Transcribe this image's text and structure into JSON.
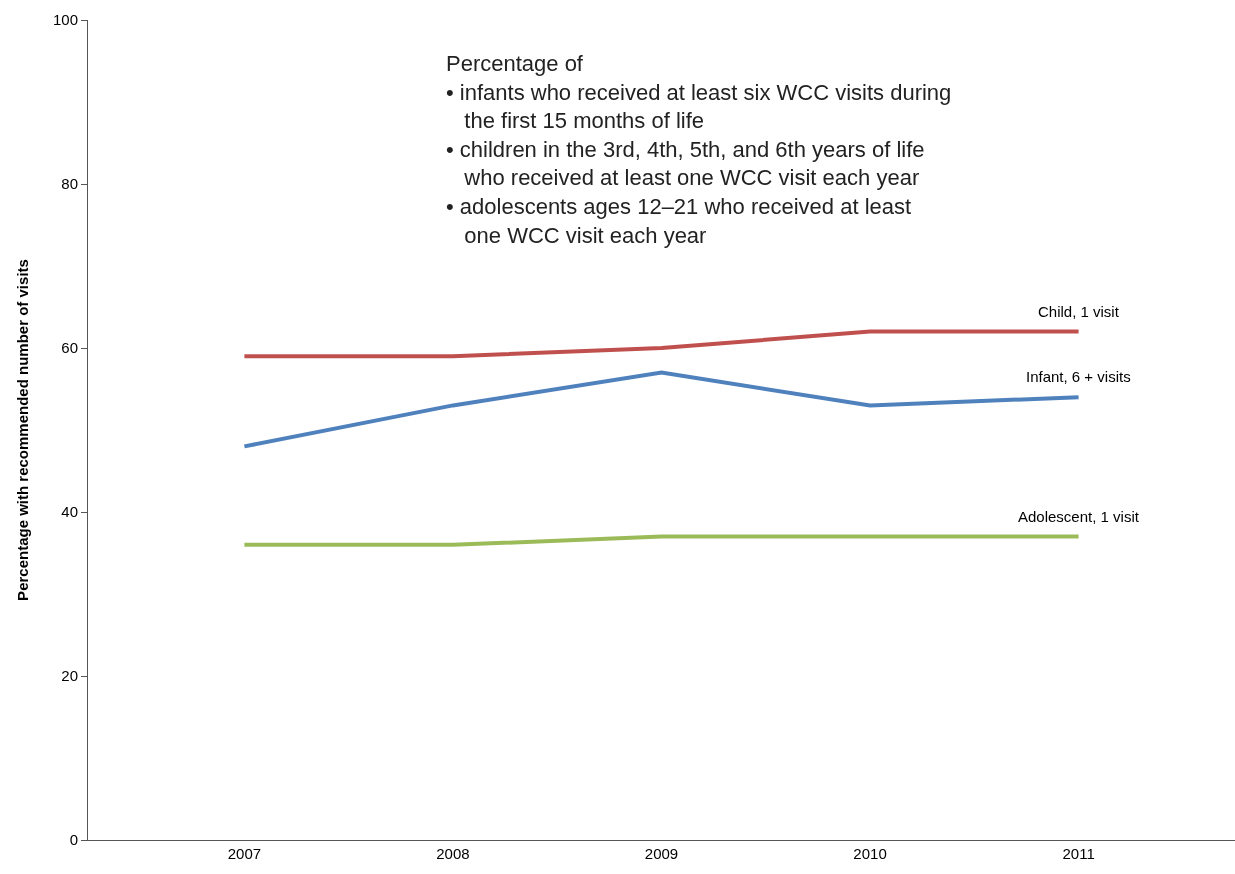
{
  "chart_data": {
    "type": "line",
    "ylabel": "Percentage with recommended number of visits",
    "categories": [
      "2007",
      "2008",
      "2009",
      "2010",
      "2011"
    ],
    "series": [
      {
        "name": "Child, 1 visit",
        "color": "#c0504d",
        "values": [
          59,
          59,
          60,
          62,
          62
        ]
      },
      {
        "name": "Infant, 6 + visits",
        "color": "#4f81bd",
        "values": [
          48,
          53,
          57,
          53,
          54
        ]
      },
      {
        "name": "Adolescent, 1 visit",
        "color": "#9bbb59",
        "values": [
          36,
          36,
          37,
          37,
          37
        ]
      }
    ],
    "ylim": [
      0,
      100
    ],
    "yticks": [
      0,
      20,
      40,
      60,
      80,
      100
    ],
    "legend": false,
    "marker": "none",
    "line_style": "solid",
    "annotations": [
      "Percentage of\n• infants who received at least six WCC visits during\n   the first 15 months of life\n• children in the 3rd, 4th, 5th, and 6th years of life\n   who received at least one WCC visit each year\n• adolescents ages 12–21 who received at least\n   one WCC visit each year"
    ]
  }
}
